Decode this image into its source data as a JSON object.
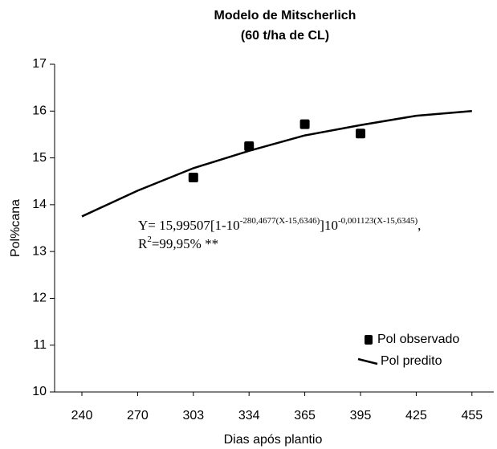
{
  "chart_data": {
    "type": "line",
    "title": "Modelo de Mitscherlich",
    "subtitle": "(60 t/ha de CL)",
    "x_label": "Dias após plantio",
    "y_label": "Pol%cana",
    "categories": [
      "240",
      "270",
      "303",
      "334",
      "365",
      "395",
      "425",
      "455"
    ],
    "series": [
      {
        "name": "Pol observado",
        "color": "#000000",
        "marker": "square",
        "values": [
          null,
          null,
          14.58,
          15.25,
          15.72,
          15.52,
          null,
          null
        ]
      },
      {
        "name": "Pol predito",
        "color": "#000000",
        "marker": "none",
        "values": [
          13.75,
          14.3,
          14.78,
          15.15,
          15.48,
          15.7,
          15.9,
          16.0
        ]
      }
    ],
    "ylim": [
      10,
      17
    ],
    "yticks": [
      10,
      11,
      12,
      13,
      14,
      15,
      16,
      17
    ],
    "annotation": {
      "eq_a": "Y= 15,99507[1-10",
      "eq_b": "-280,4677(X-15,6346)",
      "eq_c": "]10",
      "eq_d": "-0,001123(X-15,6345)",
      "eq_e": ",",
      "r2_a": "R",
      "r2_b": "2",
      "r2_c": "=99,95% **"
    },
    "legend": "lower right",
    "grid": false
  }
}
